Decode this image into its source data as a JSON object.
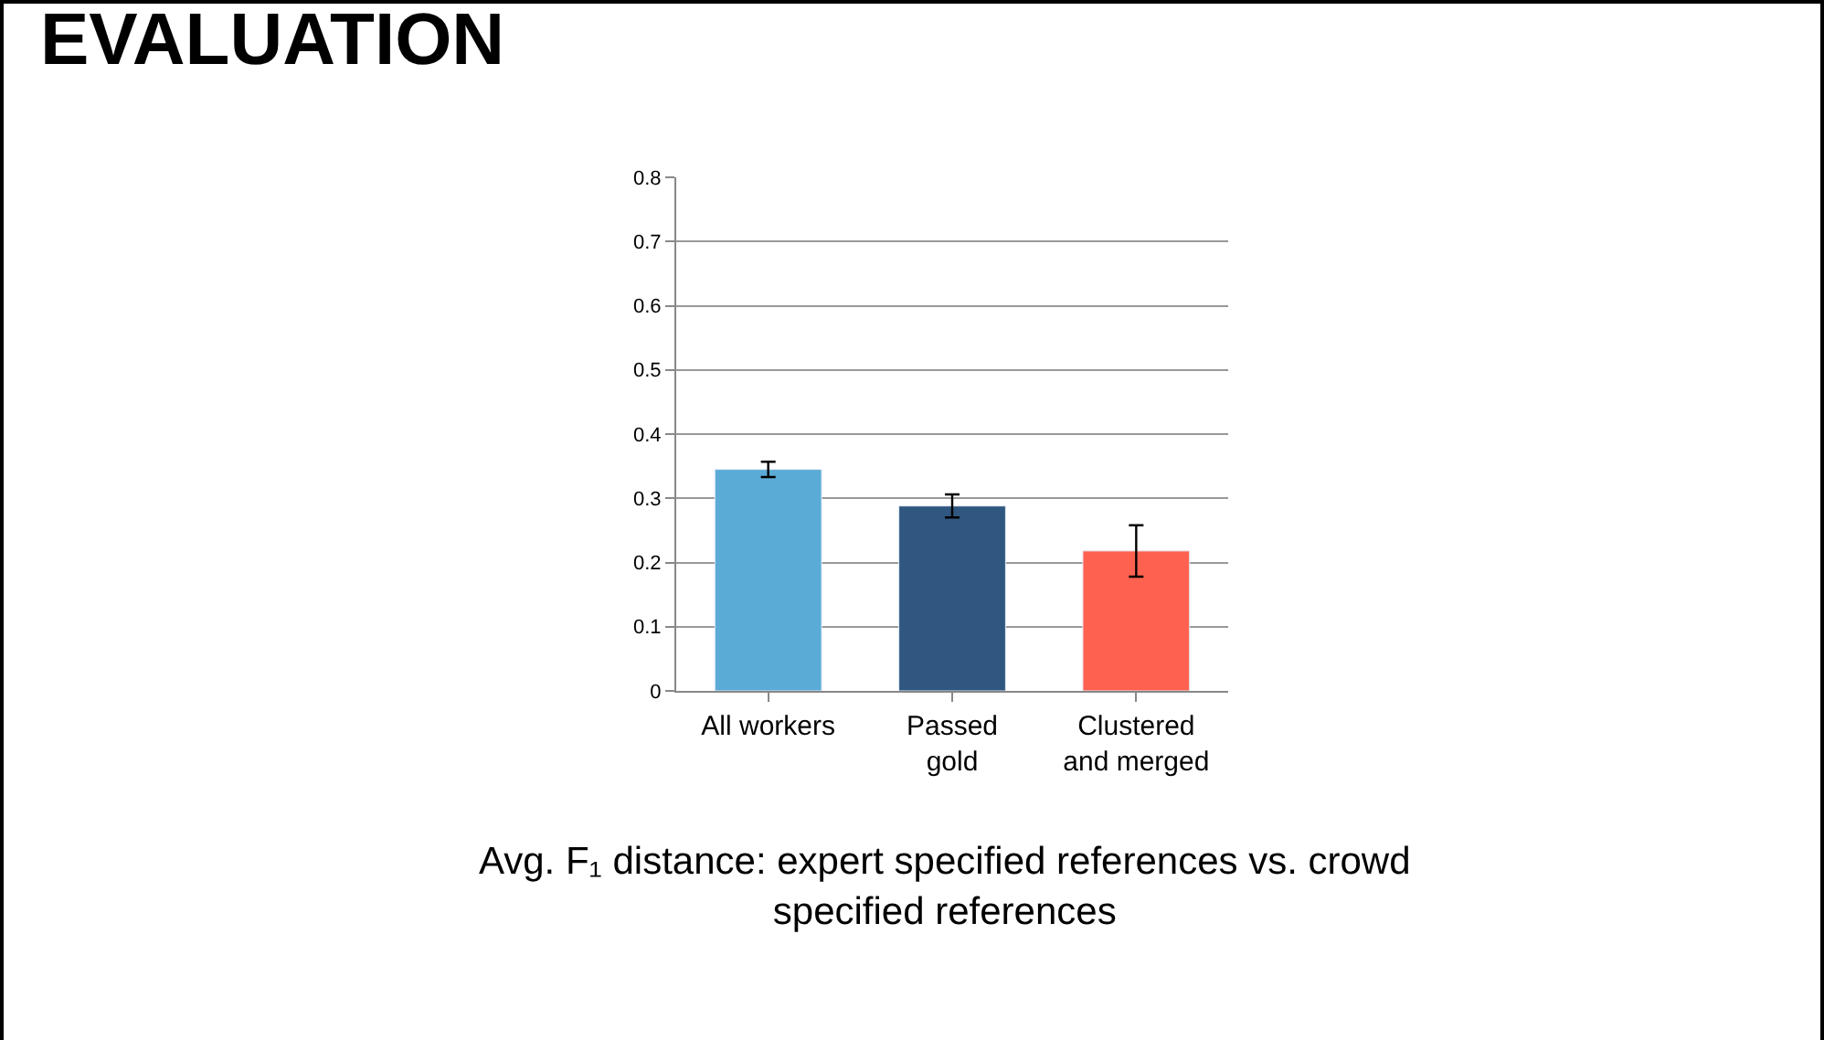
{
  "chart_data": {
    "type": "bar",
    "title": "EVALUATION",
    "categories": [
      "All workers",
      "Passed\ngold",
      "Clustered\nand merged"
    ],
    "values": [
      0.345,
      0.288,
      0.218
    ],
    "errors": [
      0.012,
      0.018,
      0.04
    ],
    "colors": [
      "#5aabd6",
      "#2f577f",
      "#ff6150"
    ],
    "ylim": [
      0,
      0.8
    ],
    "yticks": [
      0,
      0.1,
      0.2,
      0.3,
      0.4,
      0.5,
      0.6,
      0.7,
      0.8
    ],
    "grid": "y",
    "annotations": [
      "Avg. F₁ distance: expert specified references vs. crowd\nspecified references"
    ]
  }
}
